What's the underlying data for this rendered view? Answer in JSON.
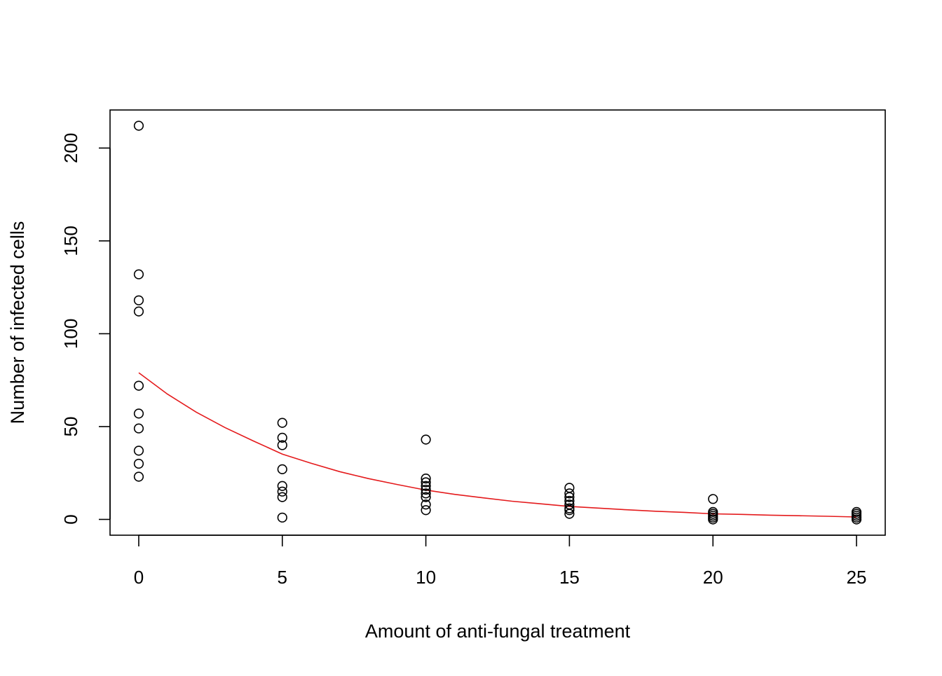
{
  "chart_data": {
    "type": "scatter",
    "title": "",
    "xlabel": "Amount of anti-fungal treatment",
    "ylabel": "Number of infected cells",
    "xlim": [
      -1,
      26
    ],
    "ylim": [
      -8.5,
      220.5
    ],
    "grid": false,
    "x_ticks": [
      0,
      5,
      10,
      15,
      20,
      25
    ],
    "y_ticks": [
      0,
      50,
      100,
      150,
      200
    ],
    "x_tick_labels": [
      "0",
      "5",
      "10",
      "15",
      "20",
      "25"
    ],
    "y_tick_labels": [
      "0",
      "50",
      "100",
      "150",
      "200"
    ],
    "colors": {
      "points": "#000000",
      "fit_line": "#e41a1c",
      "axes": "#000000",
      "background": "#ffffff"
    },
    "points": [
      {
        "x": 0,
        "y": 212
      },
      {
        "x": 0,
        "y": 132
      },
      {
        "x": 0,
        "y": 118
      },
      {
        "x": 0,
        "y": 112
      },
      {
        "x": 0,
        "y": 72
      },
      {
        "x": 0,
        "y": 57
      },
      {
        "x": 0,
        "y": 49
      },
      {
        "x": 0,
        "y": 37
      },
      {
        "x": 0,
        "y": 30
      },
      {
        "x": 0,
        "y": 23
      },
      {
        "x": 5,
        "y": 52
      },
      {
        "x": 5,
        "y": 44
      },
      {
        "x": 5,
        "y": 40
      },
      {
        "x": 5,
        "y": 27
      },
      {
        "x": 5,
        "y": 18
      },
      {
        "x": 5,
        "y": 15
      },
      {
        "x": 5,
        "y": 12
      },
      {
        "x": 5,
        "y": 1
      },
      {
        "x": 10,
        "y": 43
      },
      {
        "x": 10,
        "y": 22
      },
      {
        "x": 10,
        "y": 20
      },
      {
        "x": 10,
        "y": 18
      },
      {
        "x": 10,
        "y": 16
      },
      {
        "x": 10,
        "y": 14
      },
      {
        "x": 10,
        "y": 12
      },
      {
        "x": 10,
        "y": 8
      },
      {
        "x": 10,
        "y": 5
      },
      {
        "x": 15,
        "y": 17
      },
      {
        "x": 15,
        "y": 14
      },
      {
        "x": 15,
        "y": 12
      },
      {
        "x": 15,
        "y": 10
      },
      {
        "x": 15,
        "y": 8
      },
      {
        "x": 15,
        "y": 6
      },
      {
        "x": 15,
        "y": 5
      },
      {
        "x": 15,
        "y": 3
      },
      {
        "x": 20,
        "y": 11
      },
      {
        "x": 20,
        "y": 4
      },
      {
        "x": 20,
        "y": 3
      },
      {
        "x": 20,
        "y": 2
      },
      {
        "x": 20,
        "y": 1
      },
      {
        "x": 20,
        "y": 0
      },
      {
        "x": 25,
        "y": 4
      },
      {
        "x": 25,
        "y": 3
      },
      {
        "x": 25,
        "y": 2
      },
      {
        "x": 25,
        "y": 1
      },
      {
        "x": 25,
        "y": 0
      }
    ],
    "fit_line": {
      "type": "exponential",
      "x": [
        0,
        1,
        2,
        3,
        4,
        5,
        6,
        7,
        8,
        9,
        10,
        11,
        12,
        13,
        14,
        15,
        16,
        17,
        18,
        19,
        20,
        21,
        22,
        23,
        24,
        25
      ],
      "y": [
        79,
        67.5,
        57.8,
        49.5,
        42.2,
        35.2,
        30.3,
        25.7,
        22.0,
        18.8,
        15.8,
        13.5,
        11.6,
        9.8,
        8.4,
        7.0,
        6.1,
        5.2,
        4.4,
        3.8,
        3.0,
        2.7,
        2.3,
        2.0,
        1.7,
        1.3
      ]
    }
  }
}
